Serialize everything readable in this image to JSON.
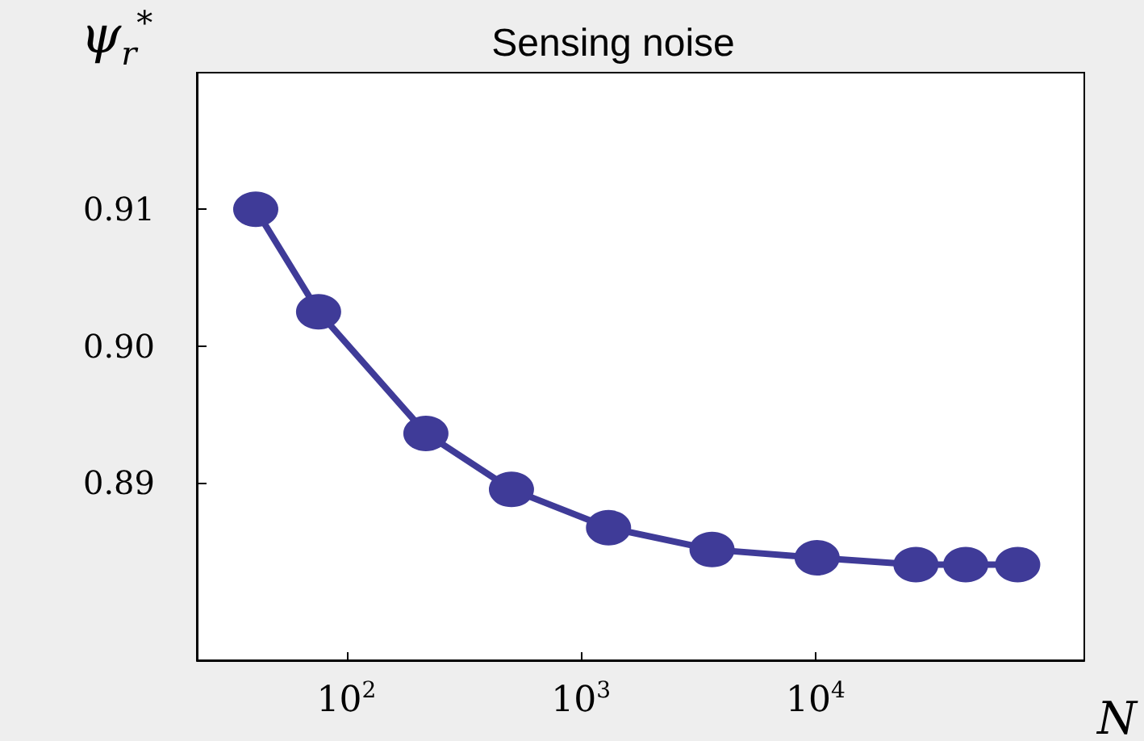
{
  "chart_data": {
    "type": "line",
    "title": "Sensing noise",
    "xlabel": "N",
    "ylabel": "ψ$_{r}$$^{*}$",
    "x": [
      41,
      76,
      218,
      505,
      1310,
      3620,
      10160,
      26800,
      43700,
      72800
    ],
    "series": [
      {
        "color": "#3f3b98",
        "values": [
          0.91,
          0.9025,
          0.8936,
          0.8895,
          0.8867,
          0.8851,
          0.8845,
          0.884,
          0.884,
          0.884
        ]
      }
    ],
    "log": "x",
    "xlim": [
      23,
      140000
    ],
    "xticks": [
      {
        "value": 100,
        "label": "10$^{2}$"
      },
      {
        "value": 1000,
        "label": "10$^{3}$"
      },
      {
        "value": 10000,
        "label": "10$^{4}$"
      }
    ],
    "ylim": [
      0.877,
      0.92
    ],
    "yticks": [
      {
        "value": 0.89,
        "label": "0.89"
      },
      {
        "value": 0.9,
        "label": "0.90"
      },
      {
        "value": 0.91,
        "label": "0.91"
      }
    ],
    "grid": false,
    "marker": "circle",
    "line_style": "solid"
  }
}
